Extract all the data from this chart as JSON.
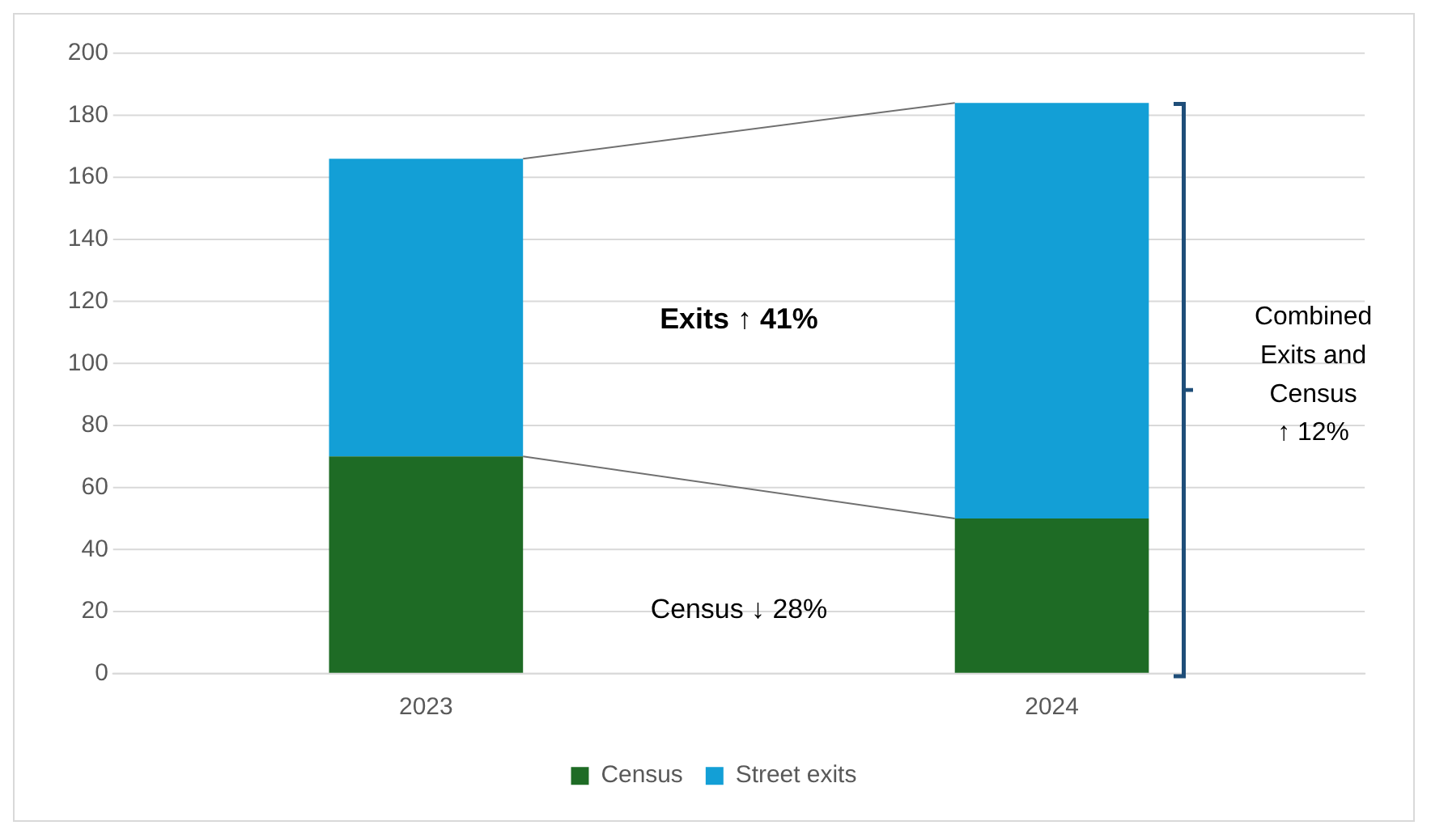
{
  "chart_data": {
    "type": "bar",
    "stacked": true,
    "categories": [
      "2023",
      "2024"
    ],
    "series": [
      {
        "name": "Census",
        "color": "#1e6b25",
        "values": [
          70,
          50
        ]
      },
      {
        "name": "Street exits",
        "color": "#139fd6",
        "values": [
          96,
          134
        ]
      }
    ],
    "ylim": [
      0,
      200
    ],
    "yticks": [
      0,
      20,
      40,
      60,
      80,
      100,
      120,
      140,
      160,
      180,
      200
    ],
    "grid": "y",
    "legend": "bottom",
    "annotations": [
      "Exits ↑ 41%",
      "Census ↓ 28%",
      "Combined Exits and Census ↑ 12%"
    ]
  }
}
